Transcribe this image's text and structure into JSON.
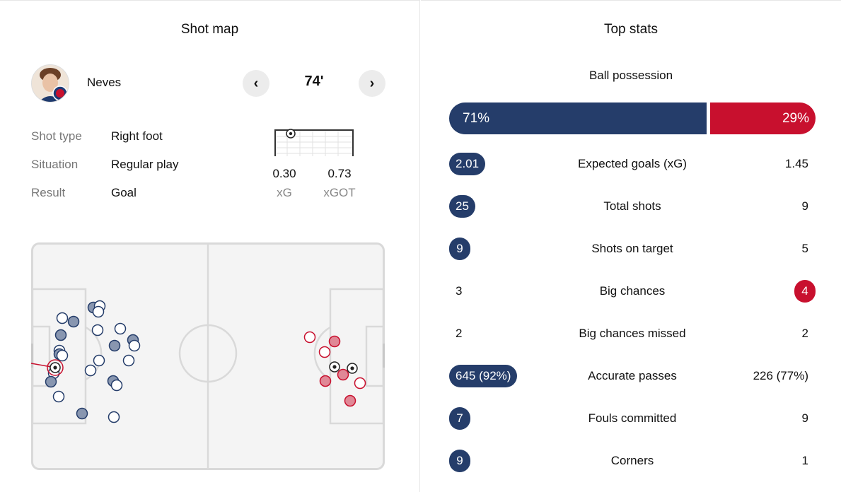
{
  "shotmap": {
    "title": "Shot map",
    "player_name": "Neves",
    "minute": "74'",
    "prev_icon": "‹",
    "next_icon": "›",
    "details": [
      {
        "label": "Shot type",
        "value": "Right foot"
      },
      {
        "label": "Situation",
        "value": "Regular play"
      },
      {
        "label": "Result",
        "value": "Goal"
      }
    ],
    "xg": "0.30",
    "xg_label": "xG",
    "xgot": "0.73",
    "xgot_label": "xGOT"
  },
  "colors": {
    "home": "#253d6a",
    "away": "#c8102e",
    "pitch_line": "#d9d9d9",
    "pitch_bg": "#f4f4f4"
  },
  "topstats": {
    "title": "Top stats",
    "possession_label": "Ball possession",
    "possession_home": "71%",
    "possession_away": "29%",
    "possession_home_value": 71,
    "possession_away_value": 29,
    "rows": [
      {
        "label": "Expected goals (xG)",
        "home": "2.01",
        "away": "1.45",
        "highlight": "home"
      },
      {
        "label": "Total shots",
        "home": "25",
        "away": "9",
        "highlight": "home"
      },
      {
        "label": "Shots on target",
        "home": "9",
        "away": "5",
        "highlight": "home"
      },
      {
        "label": "Big chances",
        "home": "3",
        "away": "4",
        "highlight": "away"
      },
      {
        "label": "Big chances missed",
        "home": "2",
        "away": "2",
        "highlight": "none"
      },
      {
        "label": "Accurate passes",
        "home": "645 (92%)",
        "away": "226 (77%)",
        "highlight": "home"
      },
      {
        "label": "Fouls committed",
        "home": "7",
        "away": "9",
        "highlight": "home"
      },
      {
        "label": "Corners",
        "home": "9",
        "away": "1",
        "highlight": "home"
      }
    ]
  }
}
